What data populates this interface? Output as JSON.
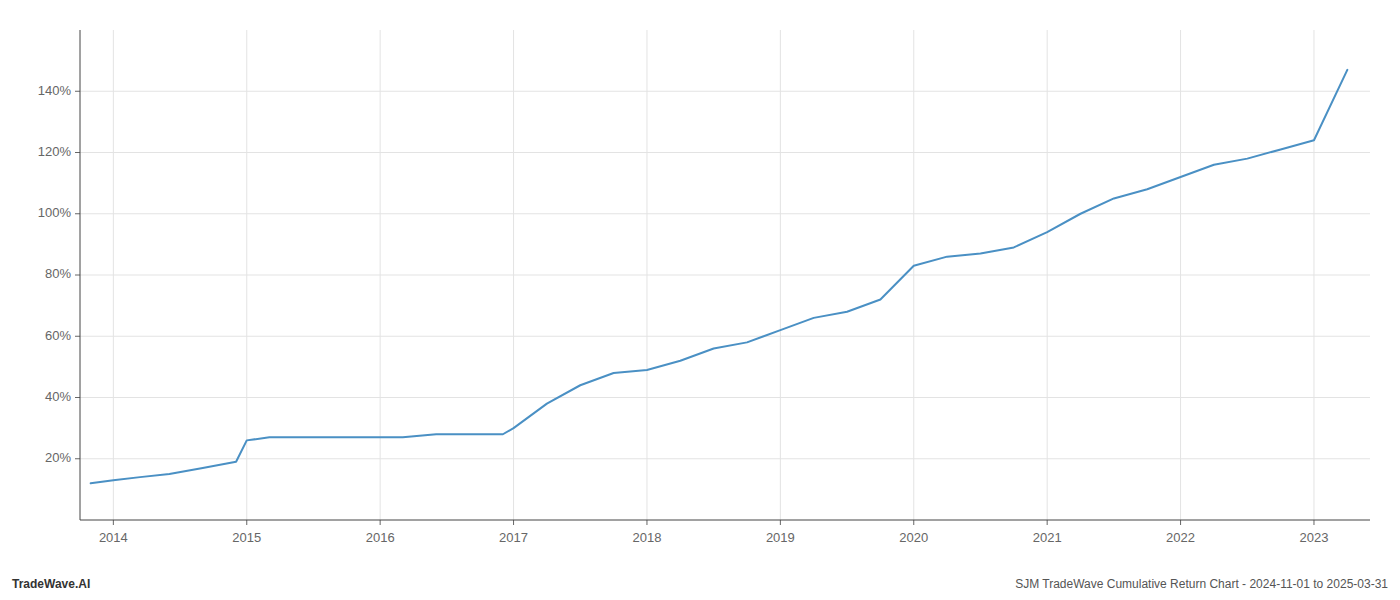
{
  "chart_data": {
    "type": "line",
    "annotations": [
      "TradeWave.AI",
      "SJM TradeWave Cumulative Return Chart - 2024-11-01 to 2025-03-31"
    ],
    "x": [
      2013.83,
      2014.0,
      2014.2,
      2014.42,
      2014.67,
      2014.92,
      2015.0,
      2015.17,
      2015.42,
      2015.67,
      2015.92,
      2016.0,
      2016.17,
      2016.42,
      2016.67,
      2016.92,
      2017.0,
      2017.25,
      2017.5,
      2017.75,
      2018.0,
      2018.25,
      2018.5,
      2018.75,
      2019.0,
      2019.25,
      2019.5,
      2019.75,
      2020.0,
      2020.25,
      2020.5,
      2020.75,
      2021.0,
      2021.25,
      2021.5,
      2021.75,
      2022.0,
      2022.25,
      2022.5,
      2022.75,
      2023.0,
      2023.25
    ],
    "values": [
      12,
      13,
      14,
      15,
      17,
      19,
      26,
      27,
      27,
      27,
      27,
      27,
      27,
      28,
      28,
      28,
      30,
      38,
      44,
      48,
      49,
      52,
      56,
      58,
      62,
      66,
      68,
      72,
      83,
      86,
      87,
      89,
      94,
      100,
      105,
      108,
      112,
      116,
      118,
      121,
      124,
      147
    ],
    "color": "#4a90c4",
    "xlim": [
      2013.75,
      2023.42
    ],
    "xticks": [
      2014,
      2015,
      2016,
      2017,
      2018,
      2019,
      2020,
      2021,
      2022,
      2023
    ],
    "ylim": [
      0,
      160
    ],
    "yticks": [
      {
        "value": 20,
        "label": "20%"
      },
      {
        "value": 40,
        "label": "40%"
      },
      {
        "value": 60,
        "label": "60%"
      },
      {
        "value": 80,
        "label": "80%"
      },
      {
        "value": 100,
        "label": "100%"
      },
      {
        "value": 120,
        "label": "120%"
      },
      {
        "value": 140,
        "label": "140%"
      }
    ],
    "grid": true
  }
}
